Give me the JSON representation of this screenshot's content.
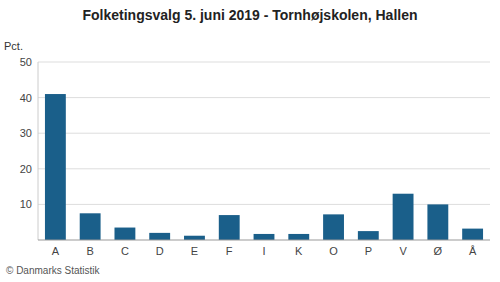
{
  "chart_data": {
    "type": "bar",
    "title": "Folketingsvalg 5. juni 2019 - Tornhøjskolen, Hallen",
    "ylabel": "Pct.",
    "footer": "© Danmarks Statistik",
    "categories": [
      "A",
      "B",
      "C",
      "D",
      "E",
      "F",
      "I",
      "K",
      "O",
      "P",
      "V",
      "Ø",
      "Å"
    ],
    "values": [
      41,
      7.5,
      3.5,
      2,
      1.2,
      7,
      1.7,
      1.7,
      7.2,
      2.5,
      13,
      10,
      3.2
    ],
    "color": "#1a5f8a",
    "ylim": [
      0,
      50
    ],
    "yticks": [
      10,
      20,
      30,
      40,
      50
    ],
    "grid": true
  }
}
